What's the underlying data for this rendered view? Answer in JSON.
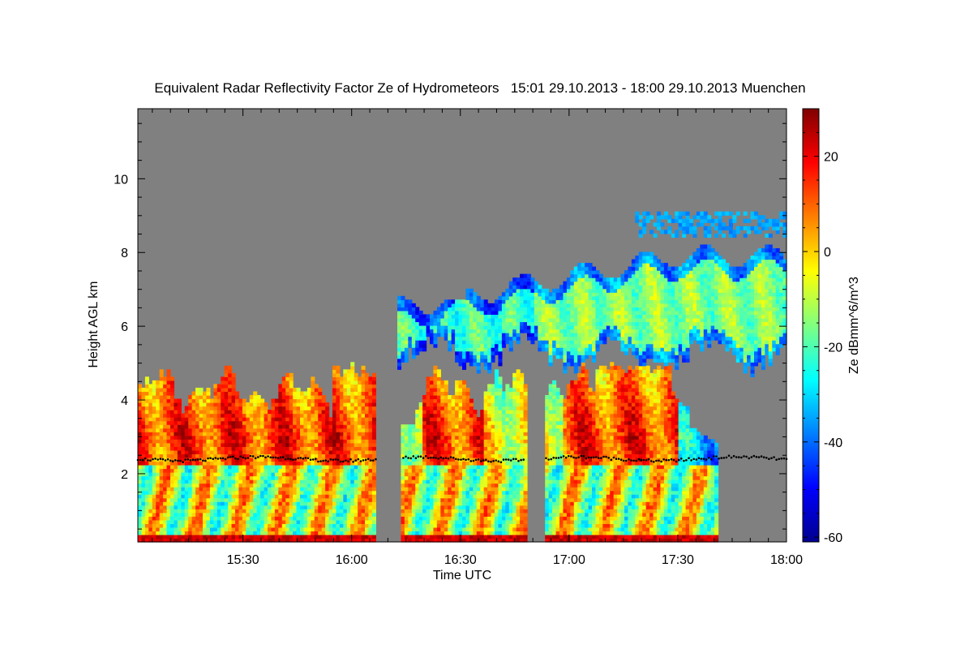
{
  "chart_data": {
    "type": "heatmap",
    "title": "Equivalent Radar Reflectivity Factor Ze of Hydrometeors   15:01 29.10.2013 - 18:00 29.10.2013 Muenchen",
    "xlabel": "Time UTC",
    "ylabel": "Height AGL km",
    "colorbar_label": "Ze dBmm^6/m^3",
    "x_range": [
      "15:01",
      "18:00"
    ],
    "x_ticks": [
      {
        "t": "15:30",
        "label": "15:30"
      },
      {
        "t": "16:00",
        "label": "16:00"
      },
      {
        "t": "16:30",
        "label": "16:30"
      },
      {
        "t": "17:00",
        "label": "17:00"
      },
      {
        "t": "17:30",
        "label": "17:30"
      },
      {
        "t": "18:00",
        "label": "18:00"
      }
    ],
    "y_range": [
      0.15,
      11.9
    ],
    "y_ticks": [
      {
        "v": 2,
        "label": "2"
      },
      {
        "v": 4,
        "label": "4"
      },
      {
        "v": 6,
        "label": "6"
      },
      {
        "v": 8,
        "label": "8"
      },
      {
        "v": 10,
        "label": "10"
      }
    ],
    "colorbar_range": [
      -61,
      30
    ],
    "colorbar_ticks": [
      {
        "v": -60,
        "label": "-60"
      },
      {
        "v": -40,
        "label": "-40"
      },
      {
        "v": -20,
        "label": "-20"
      },
      {
        "v": 0,
        "label": "0"
      },
      {
        "v": 20,
        "label": "20"
      }
    ],
    "colormap": "jet",
    "no_signal_color": "#808080",
    "melting_layer_color": "#000000",
    "features": {
      "low_cloud": {
        "time": [
          "15:01",
          "17:41"
        ],
        "top_km": 4.3,
        "peak_top_km": 4.8,
        "core_dbz": 15,
        "gaps": [
          [
            "16:07",
            "16:14"
          ],
          [
            "16:48",
            "16:53"
          ]
        ]
      },
      "upper_cloud": {
        "time": [
          "16:13",
          "18:00"
        ],
        "base_km": 5.2,
        "top_km": 7.9,
        "dbz": -15
      },
      "high_cloud": {
        "time": [
          "17:18",
          "18:00"
        ],
        "height_km": [
          8.4,
          9.1
        ],
        "dbz": -35
      },
      "melting_layer": {
        "height_km": [
          2.35,
          2.7
        ],
        "time": [
          "15:01",
          "18:00"
        ]
      }
    }
  }
}
